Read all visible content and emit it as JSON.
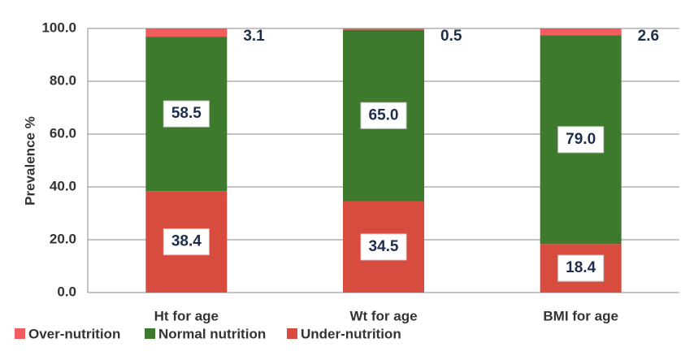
{
  "chart_data": {
    "type": "stacked_bar",
    "y_axis_label": "Prevalence %",
    "categories": [
      "Ht for age",
      "Wt for age",
      "BMI for age"
    ],
    "series": [
      {
        "name": "Over-nutrition",
        "color": "#f25c5c",
        "values": [
          3.1,
          0.5,
          2.6
        ],
        "value_labels": [
          "3.1",
          "0.5",
          "2.6"
        ]
      },
      {
        "name": "Normal nutrition",
        "color": "#3e7a2e",
        "values": [
          58.5,
          65.0,
          79.0
        ],
        "value_labels": [
          "58.5",
          "65.0",
          "79.0"
        ]
      },
      {
        "name": "Under-nutrition",
        "color": "#d84c40",
        "values": [
          38.4,
          34.5,
          18.4
        ],
        "value_labels": [
          "38.4",
          "34.5",
          "18.4"
        ]
      }
    ],
    "ylim": [
      0,
      100
    ],
    "yticks": [
      {
        "value": 0,
        "label": "0.0"
      },
      {
        "value": 20,
        "label": "20.0"
      },
      {
        "value": 40,
        "label": "40.0"
      },
      {
        "value": 60,
        "label": "60.0"
      },
      {
        "value": 80,
        "label": "80.0"
      },
      {
        "value": 100,
        "label": "100.0"
      }
    ],
    "grid": true,
    "legend": "bottom-left"
  }
}
